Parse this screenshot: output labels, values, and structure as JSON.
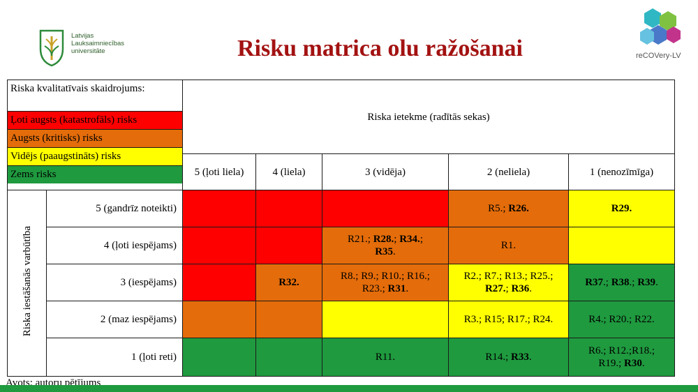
{
  "logos": {
    "left_lines": [
      "Latvijas",
      "Lauksaimniecības",
      "universitāte"
    ],
    "right_name": "reCOVery-LV"
  },
  "title": "Risku matrica olu ražošanai",
  "legend": {
    "header": "Riska kvalitatīvais skaidrojums:",
    "items": [
      {
        "label": "Ļoti augsts (katastrofāls) risks",
        "color": "#ff0000"
      },
      {
        "label": "Augsts (kritisks) risks",
        "color": "#e46c0a"
      },
      {
        "label": "Vidējs (paaugstināts) risks",
        "color": "#ffff00"
      },
      {
        "label": "Zems risks",
        "color": "#1f9a3f"
      }
    ]
  },
  "impact_header": "Riska ietekme (radītās sekas)",
  "probability_header": "Riska iestāšanās varbūtība",
  "impact_levels": [
    "5 (ļoti liela)",
    "4 (liela)",
    "3 (vidēja)",
    "2 (neliela)",
    "1 (nenozīmīga)"
  ],
  "rows": [
    {
      "label": "5 (gandrīz noteikti)",
      "cells": [
        {
          "color": "red",
          "text": ""
        },
        {
          "color": "red",
          "text": ""
        },
        {
          "color": "red",
          "text": ""
        },
        {
          "color": "orange",
          "text": "R5.; R26."
        },
        {
          "color": "yellow",
          "text": "R29."
        }
      ]
    },
    {
      "label": "4 (ļoti iespējams)",
      "cells": [
        {
          "color": "red",
          "text": ""
        },
        {
          "color": "red",
          "text": ""
        },
        {
          "color": "orange",
          "text": "R21.; R28.; R34.; R35."
        },
        {
          "color": "orange",
          "text": "R1."
        },
        {
          "color": "yellow",
          "text": ""
        }
      ]
    },
    {
      "label": "3 (iespējams)",
      "cells": [
        {
          "color": "red",
          "text": ""
        },
        {
          "color": "orange",
          "text": "R32."
        },
        {
          "color": "orange",
          "text": "R8.; R9.; R10.; R16.; R23.; R31."
        },
        {
          "color": "yellow",
          "text": "R2.; R7.; R13.; R25.; R27.; R36."
        },
        {
          "color": "green",
          "text": "R37.; R38.; R39."
        }
      ]
    },
    {
      "label": "2 (maz iespējams)",
      "cells": [
        {
          "color": "orange",
          "text": ""
        },
        {
          "color": "orange",
          "text": ""
        },
        {
          "color": "yellow",
          "text": ""
        },
        {
          "color": "yellow",
          "text": "R3.; R15; R17.; R24."
        },
        {
          "color": "green",
          "text": "R4.; R20.; R22."
        }
      ]
    },
    {
      "label": "1 (ļoti reti)",
      "cells": [
        {
          "color": "green",
          "text": ""
        },
        {
          "color": "green",
          "text": ""
        },
        {
          "color": "green",
          "text": "R11."
        },
        {
          "color": "green",
          "text": "R14.; R33."
        },
        {
          "color": "green",
          "text": "R6.; R12.;R18.; R19.; R30."
        }
      ]
    }
  ],
  "source": "Avots: autoru pētījums"
}
